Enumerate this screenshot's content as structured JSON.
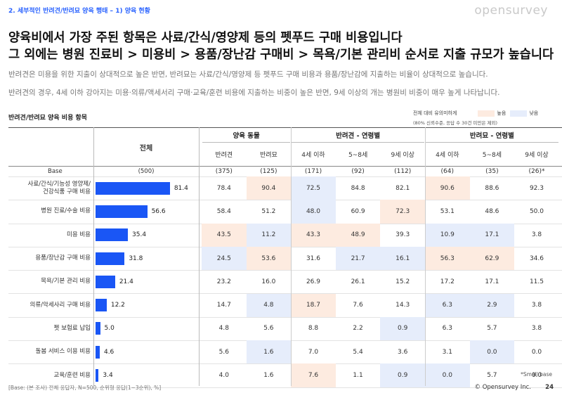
{
  "section_title": "2. 세부적인 반려견/반려묘 양육 행태 – 1) 양육 현황",
  "brand": "opensurvey",
  "headline": [
    "양육비에서 가장 주된 항목은 사료/간식/영양제 등의 펫푸드 구매 비용입니다",
    "그 외에는 병원 진료비 > 미용비 > 용품/장난감 구매비 > 목욕/기본 관리비 순서로 지출 규모가 높습니다"
  ],
  "description": [
    "반려견은 미용을 위한 지출이 상대적으로 높은 반면, 반려묘는 사료/간식/영양제 등 펫푸드 구매 비용과 용품/장난감에 지출하는 비율이 상대적으로 높습니다.",
    "반려견의 경우, 4세 이하 강아지는 미용·의류/액세서리 구매·교육/훈련 비용에 지출하는 비중이 높은 반면, 9세 이상의 개는 병원비 비중이 매우 높게 나타납니다."
  ],
  "table_title": "반려견/반려묘 양육 비용 항목",
  "legend": {
    "label": "전체 대비 유의미하게",
    "high": "높음",
    "low": "낮음",
    "note": "(80% 신뢰수준, 응답 수 30건 미만은 제외)",
    "high_color": "#fdebe0",
    "low_color": "#e6edfb"
  },
  "header": {
    "total": "전체",
    "groups": [
      {
        "label": "양육 동물",
        "cols": [
          "반려견",
          "반려묘"
        ]
      },
      {
        "label": "반려견 - 연령별",
        "cols": [
          "4세 이하",
          "5~8세",
          "9세 이상"
        ]
      },
      {
        "label": "반려묘 - 연령별",
        "cols": [
          "4세 이하",
          "5~8세",
          "9세 이상"
        ]
      }
    ]
  },
  "base_row": {
    "label": "Base",
    "total": "(500)",
    "values": [
      "(375)",
      "(125)",
      "(171)",
      "(92)",
      "(112)",
      "(64)",
      "(35)",
      "(26)*"
    ]
  },
  "chart_data": {
    "type": "table",
    "x_max": 100,
    "rows": [
      {
        "label": [
          "사료/간식/기능성 영양제/",
          "건강식품 구매 비용"
        ],
        "total": 81.4,
        "values": [
          "78.4",
          "90.4",
          "72.5",
          "84.8",
          "82.1",
          "90.6",
          "88.6",
          "92.3"
        ],
        "flags": [
          "",
          "h",
          "l",
          "",
          "",
          "h",
          "",
          ""
        ]
      },
      {
        "label": [
          "병원 진료/수술 비용"
        ],
        "total": 56.6,
        "values": [
          "58.4",
          "51.2",
          "48.0",
          "60.9",
          "72.3",
          "53.1",
          "48.6",
          "50.0"
        ],
        "flags": [
          "",
          "",
          "l",
          "",
          "h",
          "",
          "",
          ""
        ]
      },
      {
        "label": [
          "미용 비용"
        ],
        "total": 35.4,
        "values": [
          "43.5",
          "11.2",
          "43.3",
          "48.9",
          "39.3",
          "10.9",
          "17.1",
          "3.8"
        ],
        "flags": [
          "h",
          "l",
          "h",
          "h",
          "",
          "l",
          "l",
          ""
        ]
      },
      {
        "label": [
          "용품/장난감 구매 비용"
        ],
        "total": 31.8,
        "values": [
          "24.5",
          "53.6",
          "31.6",
          "21.7",
          "16.1",
          "56.3",
          "62.9",
          "34.6"
        ],
        "flags": [
          "l",
          "h",
          "",
          "l",
          "l",
          "h",
          "h",
          ""
        ]
      },
      {
        "label": [
          "목욕/기본 관리 비용"
        ],
        "total": 21.4,
        "values": [
          "23.2",
          "16.0",
          "26.9",
          "26.1",
          "15.2",
          "17.2",
          "17.1",
          "11.5"
        ],
        "flags": [
          "",
          "",
          "",
          "",
          "",
          "",
          "",
          ""
        ]
      },
      {
        "label": [
          "의류/악세사리 구매 비용"
        ],
        "total": 12.2,
        "values": [
          "14.7",
          "4.8",
          "18.7",
          "7.6",
          "14.3",
          "6.3",
          "2.9",
          "3.8"
        ],
        "flags": [
          "",
          "l",
          "h",
          "",
          "",
          "l",
          "l",
          ""
        ]
      },
      {
        "label": [
          "펫 보험료 납입"
        ],
        "total": 5.0,
        "values": [
          "4.8",
          "5.6",
          "8.8",
          "2.2",
          "0.9",
          "6.3",
          "5.7",
          "3.8"
        ],
        "flags": [
          "",
          "",
          "",
          "",
          "l",
          "",
          "",
          ""
        ]
      },
      {
        "label": [
          "돌봄 서비스 이용 비용"
        ],
        "total": 4.6,
        "values": [
          "5.6",
          "1.6",
          "7.0",
          "5.4",
          "3.6",
          "3.1",
          "0.0",
          "0.0"
        ],
        "flags": [
          "",
          "l",
          "",
          "",
          "",
          "",
          "l",
          ""
        ]
      },
      {
        "label": [
          "교육/훈련 비용"
        ],
        "total": 3.4,
        "values": [
          "4.0",
          "1.6",
          "7.6",
          "1.1",
          "0.9",
          "0.0",
          "5.7",
          "0.0"
        ],
        "flags": [
          "",
          "",
          "h",
          "",
          "l",
          "l",
          "",
          ""
        ]
      }
    ]
  },
  "footer": {
    "base_note": "[Base: (본 조사) 전체 응답자, N=500, 순위형 응답(1~3순위), %]",
    "small_base": "*Small base",
    "copyright": "© Opensurvey Inc.",
    "page": "24"
  }
}
